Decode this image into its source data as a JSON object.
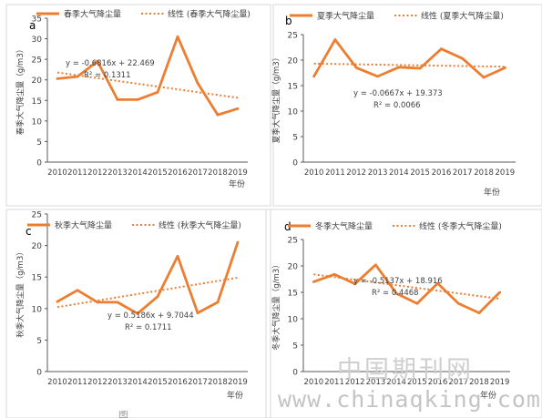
{
  "chart_data": [
    {
      "type": "line",
      "panel_label": "a",
      "legend": {
        "series": "春季大气降尘量",
        "trend": "线性 (春季大气降尘量)"
      },
      "ylabel": "春季大气降尘量（g/m3）",
      "xlabel": "年份",
      "categories": [
        "2010",
        "2011",
        "2012",
        "2013",
        "2014",
        "2015",
        "2016",
        "2017",
        "2018",
        "2019"
      ],
      "values": [
        20.3,
        20.8,
        24.5,
        15.2,
        15.2,
        17.0,
        30.5,
        19.2,
        11.5,
        13.0
      ],
      "trend": {
        "slope": -0.6816,
        "intercept": 22.469
      },
      "equation": "y = -0.6816x + 22.469",
      "r2": "R² = 0.1311",
      "ylim": [
        0,
        35
      ],
      "yticks": [
        "0",
        "5",
        "10",
        "15",
        "20",
        "25",
        "30",
        "35"
      ]
    },
    {
      "type": "line",
      "panel_label": "b",
      "legend": {
        "series": "夏季大气降尘量",
        "trend": "线性 (夏季大气降尘量)"
      },
      "ylabel": "夏季大气降尘量（g/m3）",
      "xlabel": "年份",
      "categories": [
        "2010",
        "2011",
        "2012",
        "2013",
        "2014",
        "2015",
        "2016",
        "2017",
        "2018",
        "2019"
      ],
      "values": [
        16.8,
        24.0,
        18.5,
        16.8,
        18.6,
        18.4,
        22.2,
        20.3,
        16.6,
        18.5
      ],
      "trend": {
        "slope": -0.0667,
        "intercept": 19.373
      },
      "equation": "y = -0.0667x + 19.373",
      "r2": "R² = 0.0066",
      "ylim": [
        0,
        25
      ],
      "yticks": [
        "0",
        "5",
        "10",
        "15",
        "20",
        "25"
      ]
    },
    {
      "type": "line",
      "panel_label": "c",
      "legend": {
        "series": "秋季大气降尘量",
        "trend": "线性 (秋季大气降尘量)"
      },
      "ylabel": "秋季大气降尘量（g/m3）",
      "xlabel": "年份",
      "categories": [
        "2010",
        "2011",
        "2012",
        "2013",
        "2014",
        "2015",
        "2016",
        "2017",
        "2018",
        "2019"
      ],
      "values": [
        11.1,
        12.9,
        11.0,
        11.0,
        9.2,
        11.9,
        18.3,
        9.3,
        11.0,
        20.5
      ],
      "trend": {
        "slope": 0.5186,
        "intercept": 9.7044
      },
      "equation": "y = 0.5186x + 9.7044",
      "r2": "R² = 0.1711",
      "ylim": [
        0,
        25
      ],
      "yticks": [
        "0",
        "5",
        "10",
        "15",
        "20",
        "25"
      ]
    },
    {
      "type": "line",
      "panel_label": "d",
      "legend": {
        "series": "冬季大气降尘量",
        "trend": "线性 (冬季大气降尘量)"
      },
      "ylabel": "冬季大气降尘量（g/m3）",
      "xlabel": "年份",
      "categories": [
        "2010",
        "2011",
        "2012",
        "2013",
        "2014",
        "2015",
        "2016",
        "2017",
        "2018",
        "2019"
      ],
      "values": [
        17.0,
        18.4,
        16.6,
        20.2,
        14.8,
        12.9,
        16.7,
        12.9,
        11.1,
        15.0
      ],
      "trend": {
        "slope": -0.5137,
        "intercept": 18.916
      },
      "equation": "y = -0.5137x + 18.916",
      "r2": "R² = 0.4468",
      "ylim": [
        0,
        25
      ],
      "yticks": [
        "0",
        "5",
        "10",
        "15",
        "20",
        "25"
      ]
    }
  ],
  "colors": {
    "series": "#ED7D31",
    "axis": "#595959",
    "text": "#404040",
    "border": "#d9d9d9"
  },
  "watermark": {
    "cn": "中国期刊网",
    "url": "www.chinaqking.com"
  },
  "caption": "图"
}
